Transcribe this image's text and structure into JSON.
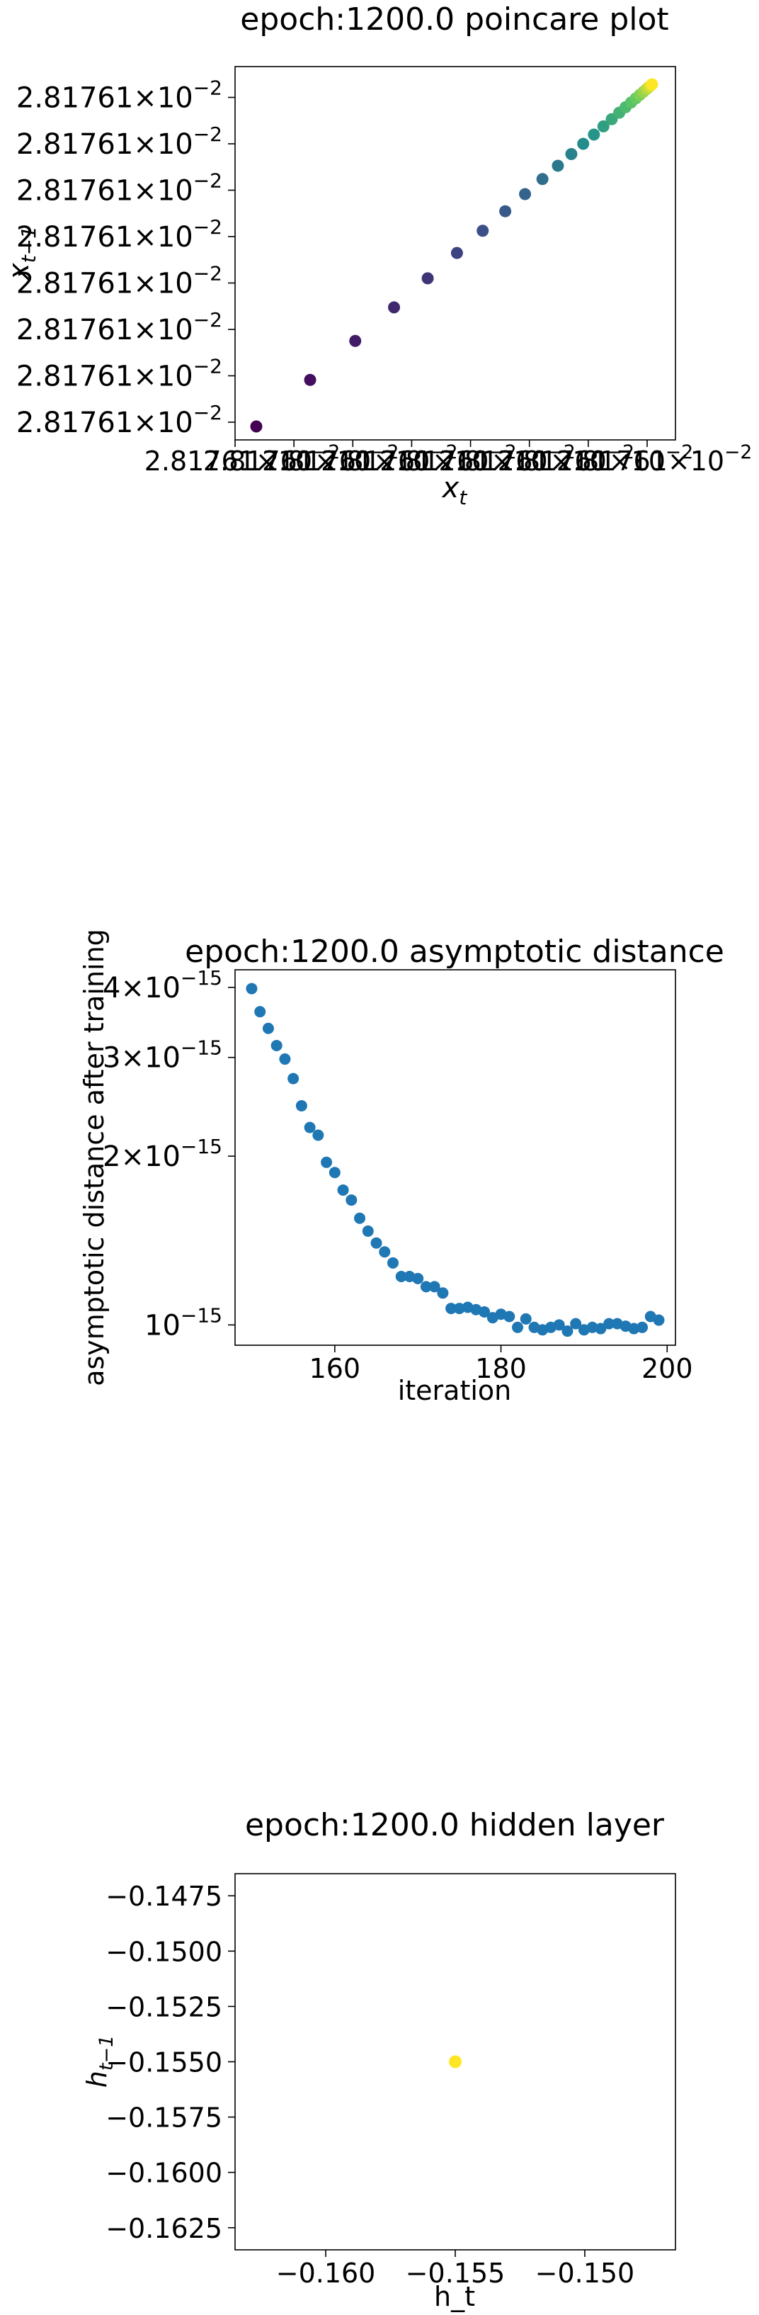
{
  "chart_data": [
    {
      "type": "scatter",
      "title": "epoch:1200.0 poincare plot",
      "xlabel": "x_t",
      "ylabel": "x_{t-1}",
      "x_tick_labels": [
        "2.81761×10⁻²",
        "2.81761×10⁻²",
        "2.81761×10⁻²",
        "2.81761×10⁻²",
        "2.81761×10⁻²",
        "2.81761×10⁻²",
        "2.81761×10⁻²",
        "2.81761×10⁻²"
      ],
      "y_tick_labels": [
        "2.81761×10⁻²",
        "2.81761×10⁻²",
        "2.81761×10⁻²",
        "2.81761×10⁻²",
        "2.81761×10⁻²",
        "2.81761×10⁻²",
        "2.81761×10⁻²",
        "2.81761×10⁻²"
      ],
      "color_map": "viridis",
      "color_encodes": "iteration order (dark purple = first, yellow = last)",
      "points_t": [
        0.0,
        0.136,
        0.25,
        0.348,
        0.433,
        0.507,
        0.572,
        0.629,
        0.679,
        0.723,
        0.762,
        0.796,
        0.826,
        0.853,
        0.877,
        0.898,
        0.917,
        0.933,
        0.947,
        0.959,
        0.969,
        0.978,
        0.986,
        0.992,
        0.997,
        1.0
      ],
      "grid": false
    },
    {
      "type": "scatter",
      "title": "epoch:1200.0 asymptotic distance",
      "xlabel": "iteration",
      "ylabel": "asymptotic distance after training",
      "xlim": [
        148,
        201
      ],
      "y_scale": "log",
      "ylim": [
        9.2e-16,
        4.3e-15
      ],
      "x_ticks": [
        160,
        180,
        200
      ],
      "y_ticks": [
        {
          "value": 4e-15,
          "mantissa": "4",
          "base": "×10",
          "exp": "−15"
        },
        {
          "value": 3e-15,
          "mantissa": "3",
          "base": "×10",
          "exp": "−15"
        },
        {
          "value": 2e-15,
          "mantissa": "2",
          "base": "×10",
          "exp": "−15"
        },
        {
          "value": 1e-15,
          "mantissa": "",
          "base": "10",
          "exp": "−15"
        }
      ],
      "x": [
        150,
        151,
        152,
        153,
        154,
        155,
        156,
        157,
        158,
        159,
        160,
        161,
        162,
        163,
        164,
        165,
        166,
        167,
        168,
        169,
        170,
        171,
        172,
        173,
        174,
        175,
        176,
        177,
        178,
        179,
        180,
        181,
        182,
        183,
        184,
        185,
        186,
        187,
        188,
        189,
        190,
        191,
        192,
        193,
        194,
        195,
        196,
        197,
        198,
        199
      ],
      "y": [
        3.98e-15,
        3.62e-15,
        3.38e-15,
        3.15e-15,
        2.98e-15,
        2.75e-15,
        2.46e-15,
        2.25e-15,
        2.18e-15,
        1.95e-15,
        1.87e-15,
        1.74e-15,
        1.67e-15,
        1.55e-15,
        1.47e-15,
        1.4e-15,
        1.35e-15,
        1.29e-15,
        1.22e-15,
        1.22e-15,
        1.21e-15,
        1.17e-15,
        1.17e-15,
        1.14e-15,
        1.07e-15,
        1.07e-15,
        1.075e-15,
        1.065e-15,
        1.055e-15,
        1.03e-15,
        1.045e-15,
        1.035e-15,
        9.9e-16,
        1.025e-15,
        9.9e-16,
        9.8e-16,
        9.9e-16,
        1e-15,
        9.75e-16,
        1.005e-15,
        9.8e-16,
        9.9e-16,
        9.85e-16,
        1.005e-15,
        1.005e-15,
        9.95e-16,
        9.85e-16,
        9.9e-16,
        1.035e-15,
        1.02e-15
      ],
      "marker_color": "#1f77b4",
      "grid": false
    },
    {
      "type": "scatter",
      "title": "epoch:1200.0 hidden layer",
      "xlabel": "h_t",
      "ylabel": "h_{t-1}",
      "xlim": [
        -0.1635,
        -0.1465
      ],
      "ylim": [
        -0.1635,
        -0.1465
      ],
      "x_ticks": [
        {
          "value": -0.16,
          "label": "−0.160"
        },
        {
          "value": -0.155,
          "label": "−0.155"
        },
        {
          "value": -0.15,
          "label": "−0.150"
        }
      ],
      "y_ticks": [
        {
          "value": -0.1475,
          "label": "−0.1475"
        },
        {
          "value": -0.15,
          "label": "−0.1500"
        },
        {
          "value": -0.1525,
          "label": "−0.1525"
        },
        {
          "value": -0.155,
          "label": "−0.1550"
        },
        {
          "value": -0.1575,
          "label": "−0.1575"
        },
        {
          "value": -0.16,
          "label": "−0.1600"
        },
        {
          "value": -0.1625,
          "label": "−0.1625"
        }
      ],
      "x": [
        -0.155
      ],
      "y": [
        -0.155
      ],
      "marker_color": "#fde725",
      "grid": false
    }
  ]
}
